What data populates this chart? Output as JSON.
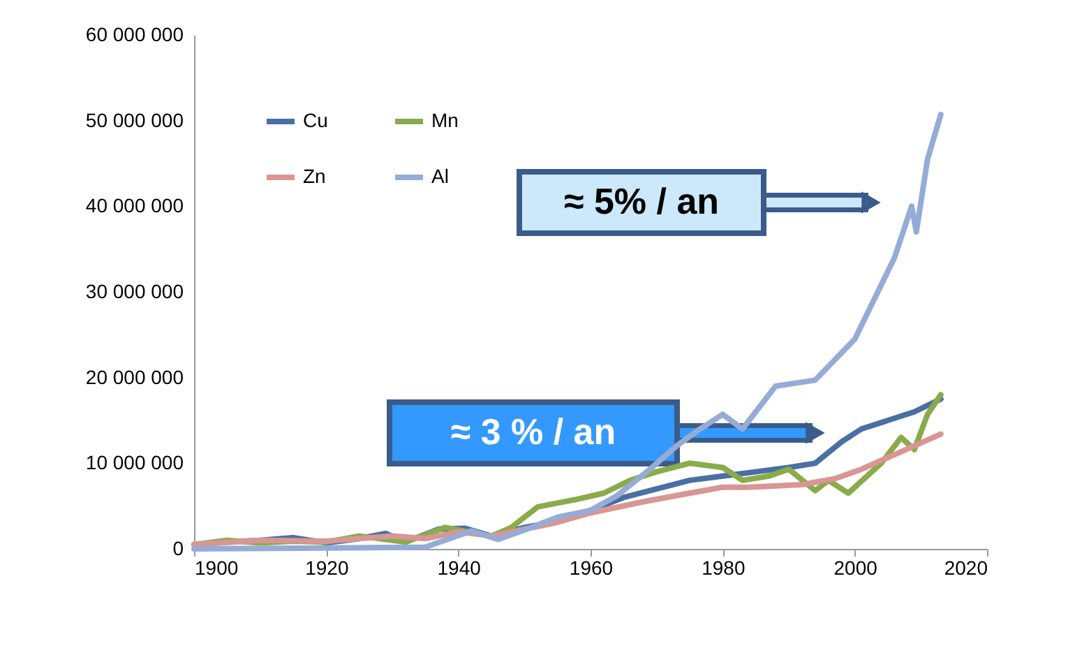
{
  "chart_data": {
    "type": "line",
    "xlim": [
      1900,
      2020
    ],
    "xticks": [
      1900,
      1920,
      1940,
      1960,
      1980,
      2000,
      2020
    ],
    "ylim": [
      0,
      60000000
    ],
    "yticks": [
      {
        "value": 0,
        "label": "0"
      },
      {
        "value": 10000000,
        "label": "10 000 000"
      },
      {
        "value": 20000000,
        "label": "20 000 000"
      },
      {
        "value": 30000000,
        "label": "30 000 000"
      },
      {
        "value": 40000000,
        "label": "40 000 000"
      },
      {
        "value": 50000000,
        "label": "50 000 000"
      },
      {
        "value": 60000000,
        "label": "60 000 000"
      }
    ],
    "grid": false,
    "legend": "top left",
    "marker": "none",
    "line_style": "solid",
    "series": [
      {
        "name": "Cu",
        "color": "#4a6fa5",
        "x": [
          1900,
          1905,
          1910,
          1915,
          1920,
          1925,
          1929,
          1932,
          1937,
          1941,
          1945,
          1950,
          1955,
          1960,
          1965,
          1970,
          1975,
          1980,
          1985,
          1990,
          1994,
          1998,
          2001,
          2005,
          2009,
          2013
        ],
        "values": [
          500000,
          800000,
          1000000,
          1300000,
          700000,
          1200000,
          1800000,
          800000,
          2300000,
          2400000,
          1500000,
          2500000,
          3200000,
          4500000,
          6000000,
          7000000,
          8000000,
          8500000,
          9000000,
          9500000,
          10000000,
          12500000,
          14000000,
          15000000,
          16000000,
          17500000
        ]
      },
      {
        "name": "Mn",
        "color": "#8aab4a",
        "x": [
          1900,
          1905,
          1910,
          1915,
          1920,
          1925,
          1932,
          1938,
          1945,
          1948,
          1952,
          1958,
          1962,
          1966,
          1970,
          1975,
          1980,
          1983,
          1987,
          1990,
          1994,
          1996,
          1999,
          2004,
          2007,
          2009,
          2011,
          2013
        ],
        "values": [
          500000,
          1000000,
          700000,
          900000,
          800000,
          1500000,
          800000,
          2500000,
          1500000,
          2500000,
          4900000,
          5800000,
          6500000,
          8000000,
          9000000,
          10000000,
          9500000,
          8000000,
          8500000,
          9300000,
          6800000,
          8000000,
          6500000,
          10000000,
          13000000,
          11600000,
          15700000,
          18000000
        ]
      },
      {
        "name": "Zn",
        "color": "#d99694",
        "x": [
          1900,
          1910,
          1920,
          1925,
          1930,
          1935,
          1940,
          1945,
          1950,
          1955,
          1960,
          1968,
          1975,
          1980,
          1984,
          1992,
          1997,
          2001,
          2006,
          2013
        ],
        "values": [
          500000,
          1000000,
          900000,
          1200000,
          1500000,
          1200000,
          2000000,
          1500000,
          2300000,
          3100000,
          4200000,
          5500000,
          6500000,
          7200000,
          7200000,
          7500000,
          8200000,
          9300000,
          11000000,
          13400000
        ]
      },
      {
        "name": "Al",
        "color": "#95acd6",
        "x": [
          1900,
          1920,
          1935,
          1942,
          1946,
          1950,
          1955,
          1960,
          1964,
          1969,
          1973,
          1976,
          1980,
          1983,
          1985,
          1988,
          1994,
          2000,
          2006,
          2008.6,
          2009.3,
          2011,
          2013
        ],
        "values": [
          0,
          100000,
          200000,
          2100000,
          1100000,
          2200000,
          3700000,
          4500000,
          6200000,
          9300000,
          12000000,
          13700000,
          15700000,
          14000000,
          16000000,
          19000000,
          19700000,
          24500000,
          34000000,
          40000000,
          37000000,
          45500000,
          50700000
        ]
      }
    ],
    "annotations": [
      "≈ 5% / an",
      "≈ 3 % / an"
    ]
  }
}
